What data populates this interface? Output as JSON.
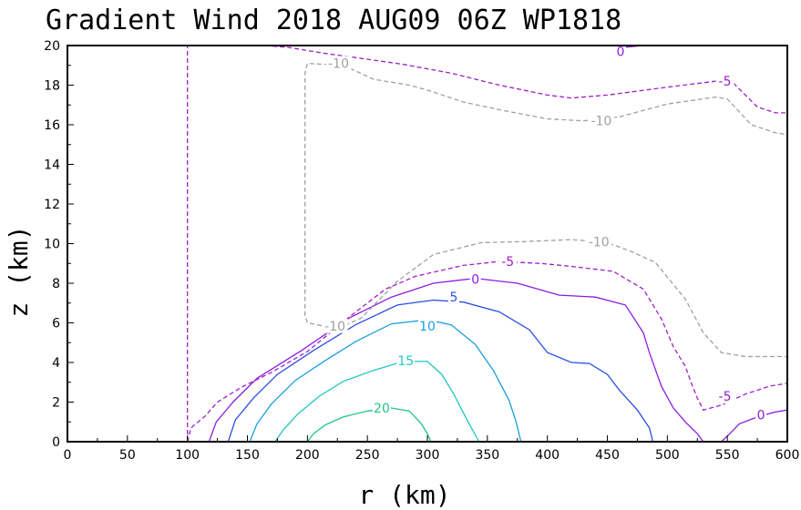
{
  "chart_data": {
    "type": "line",
    "title": "Gradient Wind 2018 AUG09 06Z   WP1818",
    "xlabel": "r (km)",
    "ylabel": "z (km)",
    "xlim": [
      0,
      600
    ],
    "ylim": [
      0,
      20
    ],
    "x_ticks": [
      "0",
      "50",
      "100",
      "150",
      "200",
      "250",
      "300",
      "350",
      "400",
      "450",
      "500",
      "550",
      "600"
    ],
    "y_ticks": [
      "0",
      "2",
      "4",
      "6",
      "8",
      "10",
      "12",
      "14",
      "16",
      "18",
      "20"
    ],
    "colors": {
      "c20": "#22c484",
      "c15": "#22c4c4",
      "c10": "#1a9ee0",
      "c5": "#2a4fe0",
      "c0": "#8a1ee0",
      "cneg5": "#a020c8",
      "cneg10": "#a0a0a0"
    },
    "series": [
      {
        "name": "20",
        "color_key": "c20",
        "dashed": false,
        "points": [
          [
            200,
            0
          ],
          [
            205,
            0.4
          ],
          [
            215,
            0.85
          ],
          [
            230,
            1.25
          ],
          [
            250,
            1.55
          ],
          [
            270,
            1.7
          ],
          [
            285,
            1.55
          ],
          [
            295,
            0.9
          ],
          [
            300,
            0.4
          ],
          [
            303,
            0
          ]
        ],
        "labels": [
          {
            "text": "20",
            "r": 262,
            "z": 1.7
          }
        ]
      },
      {
        "name": "15",
        "color_key": "c15",
        "dashed": false,
        "points": [
          [
            173,
            0
          ],
          [
            180,
            0.6
          ],
          [
            192,
            1.4
          ],
          [
            210,
            2.3
          ],
          [
            230,
            3.05
          ],
          [
            255,
            3.6
          ],
          [
            280,
            4.05
          ],
          [
            300,
            4.05
          ],
          [
            312,
            3.4
          ],
          [
            322,
            2.4
          ],
          [
            333,
            1.1
          ],
          [
            343,
            0
          ]
        ],
        "labels": [
          {
            "text": "15",
            "r": 282,
            "z": 4.1
          }
        ]
      },
      {
        "name": "10",
        "color_key": "c10",
        "dashed": false,
        "points": [
          [
            152,
            0
          ],
          [
            158,
            0.9
          ],
          [
            170,
            1.9
          ],
          [
            190,
            3.1
          ],
          [
            215,
            4.1
          ],
          [
            240,
            5.05
          ],
          [
            270,
            5.95
          ],
          [
            300,
            6.15
          ],
          [
            320,
            5.9
          ],
          [
            340,
            4.9
          ],
          [
            355,
            3.6
          ],
          [
            368,
            2.1
          ],
          [
            374,
            1
          ],
          [
            378,
            0
          ]
        ],
        "labels": [
          {
            "text": "10",
            "r": 300,
            "z": 5.85
          }
        ]
      },
      {
        "name": "5",
        "color_key": "c5",
        "dashed": false,
        "points": [
          [
            134,
            0
          ],
          [
            140,
            1.1
          ],
          [
            155,
            2.2
          ],
          [
            175,
            3.4
          ],
          [
            205,
            4.6
          ],
          [
            240,
            5.9
          ],
          [
            275,
            6.9
          ],
          [
            305,
            7.15
          ],
          [
            330,
            7.05
          ],
          [
            360,
            6.55
          ],
          [
            385,
            5.65
          ],
          [
            400,
            4.5
          ],
          [
            420,
            4
          ],
          [
            435,
            3.95
          ],
          [
            450,
            3.4
          ],
          [
            460,
            2.6
          ],
          [
            475,
            1.6
          ],
          [
            485,
            0.7
          ],
          [
            488,
            0
          ]
        ],
        "labels": [
          {
            "text": "5",
            "r": 322,
            "z": 7.3
          }
        ]
      },
      {
        "name": "0",
        "color_key": "c0",
        "dashed": false,
        "points": [
          [
            118,
            0
          ],
          [
            124,
            1
          ],
          [
            138,
            2
          ],
          [
            158,
            3.2
          ],
          [
            195,
            4.6
          ],
          [
            235,
            6.25
          ],
          [
            270,
            7.3
          ],
          [
            305,
            8
          ],
          [
            340,
            8.25
          ],
          [
            375,
            8
          ],
          [
            410,
            7.4
          ],
          [
            440,
            7.3
          ],
          [
            465,
            6.9
          ],
          [
            480,
            5.5
          ],
          [
            485,
            4.5
          ],
          [
            495,
            2.8
          ],
          [
            505,
            1.7
          ],
          [
            515,
            1
          ],
          [
            525,
            0.4
          ],
          [
            530,
            0
          ]
        ],
        "labels": [
          {
            "text": "0",
            "r": 340,
            "z": 8.2
          },
          {
            "text": "0",
            "r": 461,
            "z": 19.7
          },
          {
            "text": "0",
            "r": 578,
            "z": 1.35
          }
        ]
      },
      {
        "name": "0 (upper)",
        "color_key": "c0",
        "dashed": false,
        "points": [
          [
            462,
            19.9
          ],
          [
            480,
            20
          ]
        ],
        "labels": []
      },
      {
        "name": "0 (right)",
        "color_key": "c0",
        "dashed": false,
        "points": [
          [
            545,
            0
          ],
          [
            552,
            0.4
          ],
          [
            560,
            0.9
          ],
          [
            575,
            1.25
          ],
          [
            590,
            1.5
          ],
          [
            600,
            1.6
          ]
        ],
        "labels": []
      },
      {
        "name": "-5 (left)",
        "color_key": "cneg5",
        "dashed": true,
        "points": [
          [
            100,
            0
          ],
          [
            100,
            20
          ]
        ],
        "labels": []
      },
      {
        "name": "-5 (lower)",
        "color_key": "cneg5",
        "dashed": true,
        "points": [
          [
            100,
            0
          ],
          [
            103,
            0.7
          ],
          [
            115,
            1.3
          ],
          [
            125,
            2
          ],
          [
            145,
            2.75
          ],
          [
            170,
            3.5
          ],
          [
            200,
            4.55
          ],
          [
            235,
            6.3
          ],
          [
            265,
            7.7
          ],
          [
            290,
            8.35
          ],
          [
            330,
            8.9
          ],
          [
            360,
            9.1
          ],
          [
            395,
            9
          ],
          [
            420,
            8.85
          ],
          [
            455,
            8.6
          ],
          [
            480,
            7.7
          ],
          [
            495,
            6.2
          ],
          [
            505,
            4.8
          ],
          [
            515,
            3.8
          ],
          [
            520,
            2.95
          ],
          [
            525,
            2.2
          ],
          [
            530,
            1.6
          ],
          [
            545,
            1.85
          ],
          [
            565,
            2.4
          ],
          [
            585,
            2.8
          ],
          [
            600,
            2.95
          ]
        ],
        "labels": [
          {
            "text": "-5",
            "r": 367,
            "z": 9.1
          },
          {
            "text": "-5",
            "r": 548,
            "z": 2.3
          }
        ]
      },
      {
        "name": "-5 (upper)",
        "color_key": "cneg5",
        "dashed": true,
        "points": [
          [
            165,
            20
          ],
          [
            185,
            19.9
          ],
          [
            215,
            19.6
          ],
          [
            245,
            19.35
          ],
          [
            280,
            19.05
          ],
          [
            320,
            18.6
          ],
          [
            360,
            18
          ],
          [
            400,
            17.5
          ],
          [
            420,
            17.35
          ],
          [
            450,
            17.5
          ],
          [
            500,
            17.9
          ],
          [
            540,
            18.2
          ],
          [
            555,
            18.1
          ],
          [
            575,
            16.9
          ],
          [
            590,
            16.6
          ],
          [
            600,
            16.6
          ]
        ],
        "labels": [
          {
            "text": "-5",
            "r": 548,
            "z": 18.2
          }
        ]
      },
      {
        "name": "-10 (column)",
        "color_key": "cneg10",
        "dashed": true,
        "points": [
          [
            230,
            19
          ],
          [
            200,
            19.1
          ],
          [
            198,
            18.6
          ],
          [
            198,
            15
          ],
          [
            198,
            11
          ],
          [
            198,
            6.4
          ],
          [
            200,
            6
          ],
          [
            225,
            5.7
          ],
          [
            245,
            6.25
          ],
          [
            275,
            8.1
          ],
          [
            305,
            9.45
          ],
          [
            345,
            10.05
          ],
          [
            380,
            10.1
          ],
          [
            420,
            10.2
          ],
          [
            450,
            10.05
          ],
          [
            470,
            9.6
          ],
          [
            490,
            9.05
          ],
          [
            515,
            7.2
          ],
          [
            530,
            5.5
          ],
          [
            545,
            4.5
          ],
          [
            565,
            4.3
          ],
          [
            600,
            4.3
          ]
        ],
        "labels": [
          {
            "text": "-10",
            "r": 226,
            "z": 19.1
          },
          {
            "text": "-10",
            "r": 223,
            "z": 5.85
          },
          {
            "text": "-10",
            "r": 443,
            "z": 10.1
          }
        ]
      },
      {
        "name": "-10 (upper)",
        "color_key": "cneg10",
        "dashed": true,
        "points": [
          [
            230,
            19
          ],
          [
            255,
            18.3
          ],
          [
            285,
            18
          ],
          [
            300,
            17.75
          ],
          [
            330,
            17.15
          ],
          [
            365,
            16.7
          ],
          [
            400,
            16.3
          ],
          [
            430,
            16.2
          ],
          [
            460,
            16.4
          ],
          [
            500,
            17.05
          ],
          [
            540,
            17.4
          ],
          [
            550,
            17.3
          ],
          [
            570,
            16
          ],
          [
            590,
            15.6
          ],
          [
            600,
            15.5
          ]
        ],
        "labels": [
          {
            "text": "-10",
            "r": 445,
            "z": 16.2
          }
        ]
      }
    ]
  }
}
